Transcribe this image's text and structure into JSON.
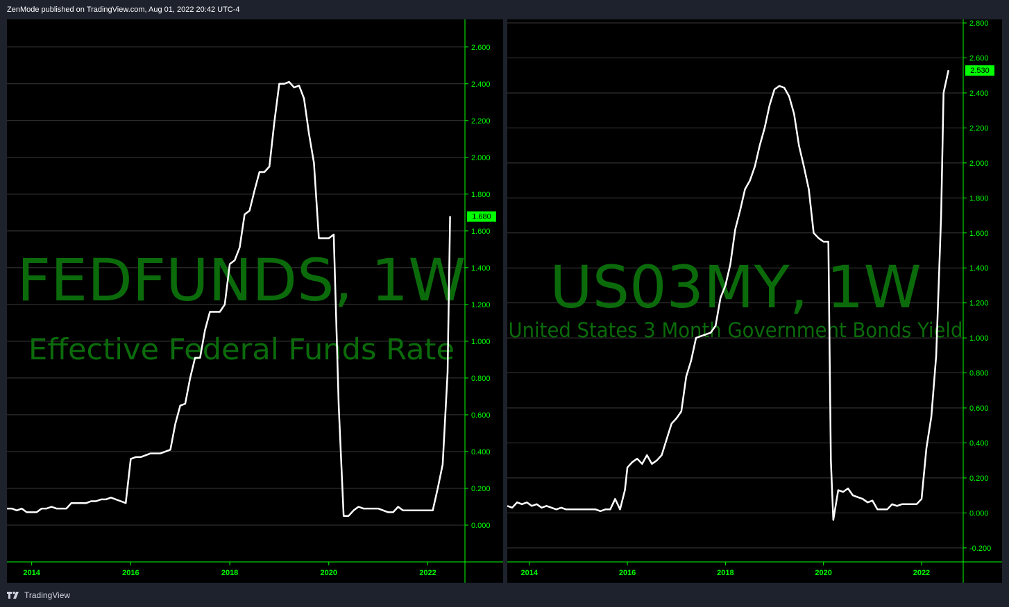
{
  "header": {
    "text": "ZenMode published on TradingView.com, Aug 01, 2022 20:42 UTC-4"
  },
  "footer": {
    "brand": "TradingView",
    "logo_icon": "tradingview-logo-icon"
  },
  "colors": {
    "background": "#000000",
    "line": "#ffffff",
    "grid": "#3a3a3a",
    "axis": "#00ff00",
    "watermark": "#0b6b0b",
    "price_label_bg": "#00ff00"
  },
  "chart_data": [
    {
      "type": "line",
      "symbol": "FEDFUNDS, 1W",
      "description": "Effective Federal Funds Rate",
      "last_value_label": "1.680",
      "last_value": 1.68,
      "x_ticks": [
        "2014",
        "2016",
        "2018",
        "2020",
        "2022"
      ],
      "y_ticks": [
        "2.600",
        "2.400",
        "2.200",
        "2.000",
        "1.800",
        "1.600",
        "1.400",
        "1.200",
        "1.000",
        "0.800",
        "0.600",
        "0.400",
        "0.200",
        "0.000"
      ],
      "ylim": [
        -0.2,
        2.75
      ],
      "xlim": [
        2013.5,
        2022.75
      ],
      "grid": true,
      "x": [
        2013.5,
        2013.6,
        2013.7,
        2013.8,
        2013.9,
        2014.0,
        2014.1,
        2014.2,
        2014.3,
        2014.4,
        2014.5,
        2014.6,
        2014.7,
        2014.8,
        2014.9,
        2015.0,
        2015.1,
        2015.2,
        2015.3,
        2015.4,
        2015.5,
        2015.6,
        2015.7,
        2015.8,
        2015.9,
        2016.0,
        2016.1,
        2016.2,
        2016.3,
        2016.4,
        2016.5,
        2016.6,
        2016.7,
        2016.8,
        2016.9,
        2017.0,
        2017.1,
        2017.2,
        2017.3,
        2017.4,
        2017.5,
        2017.6,
        2017.7,
        2017.8,
        2017.9,
        2018.0,
        2018.1,
        2018.2,
        2018.3,
        2018.4,
        2018.5,
        2018.6,
        2018.7,
        2018.8,
        2018.9,
        2019.0,
        2019.1,
        2019.2,
        2019.3,
        2019.4,
        2019.5,
        2019.6,
        2019.7,
        2019.8,
        2019.9,
        2020.0,
        2020.1,
        2020.2,
        2020.3,
        2020.4,
        2020.5,
        2020.6,
        2020.7,
        2020.8,
        2020.9,
        2021.0,
        2021.1,
        2021.2,
        2021.3,
        2021.4,
        2021.5,
        2021.6,
        2021.7,
        2021.8,
        2021.9,
        2022.0,
        2022.1,
        2022.2,
        2022.3,
        2022.4,
        2022.45
      ],
      "values": [
        0.09,
        0.09,
        0.08,
        0.09,
        0.07,
        0.07,
        0.07,
        0.09,
        0.09,
        0.1,
        0.09,
        0.09,
        0.09,
        0.12,
        0.12,
        0.12,
        0.12,
        0.13,
        0.13,
        0.14,
        0.14,
        0.15,
        0.14,
        0.13,
        0.12,
        0.36,
        0.37,
        0.37,
        0.38,
        0.39,
        0.39,
        0.39,
        0.4,
        0.41,
        0.55,
        0.65,
        0.66,
        0.8,
        0.91,
        0.91,
        1.06,
        1.16,
        1.16,
        1.16,
        1.2,
        1.42,
        1.44,
        1.51,
        1.69,
        1.71,
        1.82,
        1.92,
        1.92,
        1.95,
        2.19,
        2.4,
        2.4,
        2.41,
        2.38,
        2.39,
        2.32,
        2.13,
        1.97,
        1.56,
        1.56,
        1.56,
        1.58,
        0.65,
        0.05,
        0.05,
        0.08,
        0.1,
        0.09,
        0.09,
        0.09,
        0.09,
        0.08,
        0.07,
        0.07,
        0.1,
        0.08,
        0.08,
        0.08,
        0.08,
        0.08,
        0.08,
        0.08,
        0.2,
        0.33,
        0.83,
        1.68
      ]
    },
    {
      "type": "line",
      "symbol": "US03MY, 1W",
      "description": "United States 3 Month Government Bonds Yield",
      "last_value_label": "2.530",
      "last_value": 2.53,
      "x_ticks": [
        "2014",
        "2016",
        "2018",
        "2020",
        "2022"
      ],
      "y_ticks": [
        "2.800",
        "2.600",
        "2.400",
        "2.200",
        "2.000",
        "1.800",
        "1.600",
        "1.400",
        "1.200",
        "1.000",
        "0.800",
        "0.600",
        "0.400",
        "0.200",
        "0.000",
        "-0.200"
      ],
      "ylim": [
        -0.28,
        2.82
      ],
      "xlim": [
        2013.55,
        2022.85
      ],
      "grid": true,
      "x": [
        2013.55,
        2013.65,
        2013.75,
        2013.85,
        2013.95,
        2014.05,
        2014.15,
        2014.25,
        2014.35,
        2014.45,
        2014.55,
        2014.65,
        2014.75,
        2014.85,
        2014.95,
        2015.05,
        2015.15,
        2015.25,
        2015.35,
        2015.45,
        2015.55,
        2015.65,
        2015.75,
        2015.85,
        2015.95,
        2016.0,
        2016.1,
        2016.2,
        2016.3,
        2016.4,
        2016.5,
        2016.6,
        2016.7,
        2016.8,
        2016.9,
        2017.0,
        2017.1,
        2017.2,
        2017.3,
        2017.4,
        2017.5,
        2017.6,
        2017.7,
        2017.8,
        2017.9,
        2018.0,
        2018.1,
        2018.2,
        2018.3,
        2018.4,
        2018.5,
        2018.6,
        2018.7,
        2018.8,
        2018.9,
        2019.0,
        2019.1,
        2019.2,
        2019.3,
        2019.4,
        2019.5,
        2019.6,
        2019.7,
        2019.8,
        2019.9,
        2020.0,
        2020.1,
        2020.15,
        2020.2,
        2020.3,
        2020.4,
        2020.5,
        2020.6,
        2020.7,
        2020.8,
        2020.9,
        2021.0,
        2021.1,
        2021.2,
        2021.3,
        2021.4,
        2021.5,
        2021.6,
        2021.7,
        2021.8,
        2021.9,
        2022.0,
        2022.1,
        2022.2,
        2022.3,
        2022.4,
        2022.45,
        2022.55
      ],
      "values": [
        0.04,
        0.03,
        0.06,
        0.05,
        0.06,
        0.04,
        0.05,
        0.03,
        0.04,
        0.03,
        0.02,
        0.03,
        0.02,
        0.02,
        0.02,
        0.02,
        0.02,
        0.02,
        0.02,
        0.01,
        0.02,
        0.02,
        0.08,
        0.02,
        0.13,
        0.26,
        0.29,
        0.31,
        0.28,
        0.33,
        0.28,
        0.3,
        0.33,
        0.42,
        0.51,
        0.54,
        0.58,
        0.78,
        0.87,
        1.0,
        1.01,
        1.02,
        1.03,
        1.07,
        1.23,
        1.3,
        1.42,
        1.62,
        1.73,
        1.85,
        1.9,
        1.98,
        2.1,
        2.2,
        2.33,
        2.42,
        2.44,
        2.43,
        2.38,
        2.28,
        2.1,
        1.98,
        1.85,
        1.6,
        1.57,
        1.55,
        1.55,
        0.3,
        -0.04,
        0.13,
        0.12,
        0.14,
        0.1,
        0.09,
        0.08,
        0.06,
        0.07,
        0.02,
        0.02,
        0.02,
        0.05,
        0.04,
        0.05,
        0.05,
        0.05,
        0.05,
        0.08,
        0.37,
        0.55,
        0.9,
        1.7,
        2.4,
        2.53
      ]
    }
  ]
}
